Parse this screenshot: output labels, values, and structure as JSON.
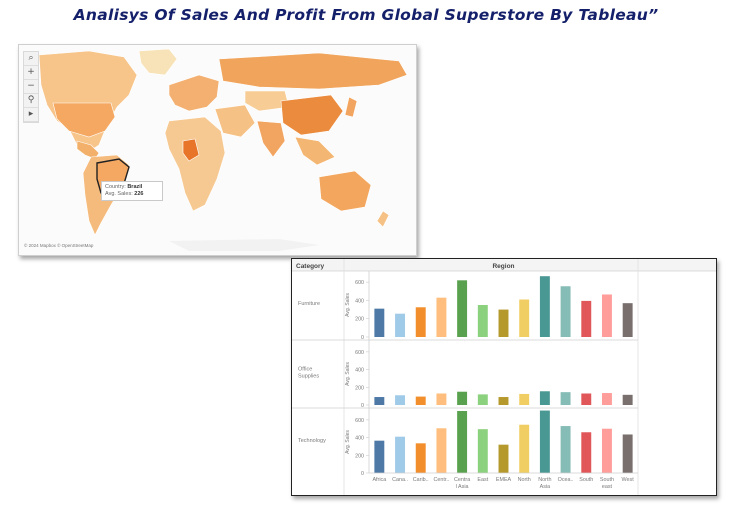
{
  "title": "Analisys Of Sales And Profit From Global Superstore By Tableau”",
  "map": {
    "tools": [
      "search-icon",
      "zoom-in-icon",
      "zoom-out-icon",
      "pin-icon",
      "play-icon"
    ],
    "tooltip": {
      "country_label": "Country:",
      "country_value": "Brazil",
      "sales_label": "Avg. Sales:",
      "sales_value": "226"
    },
    "attribution": "© 2024 Mapbox © OpenStreetMap"
  },
  "chart_data": {
    "type": "bar",
    "header_category": "Category",
    "header_region": "Region",
    "ylabel": "Avg. Sales",
    "categories": [
      "Africa",
      "Cana..",
      "Carib..",
      "Centr..",
      "Centra l Asia",
      "East",
      "EMEA",
      "North",
      "North Asia",
      "Ocea..",
      "South",
      "South east",
      "West"
    ],
    "category_lines": [
      [
        "Africa"
      ],
      [
        "Cana.."
      ],
      [
        "Carib.."
      ],
      [
        "Centr.."
      ],
      [
        "Centra",
        "l Asia"
      ],
      [
        "East"
      ],
      [
        "EMEA"
      ],
      [
        "North"
      ],
      [
        "North",
        "Asia"
      ],
      [
        "Ocea.."
      ],
      [
        "South"
      ],
      [
        "South",
        "east"
      ],
      [
        "West"
      ]
    ],
    "colors": [
      "#4e79a7",
      "#a0cbe8",
      "#f28e2b",
      "#ffbe7d",
      "#59a14f",
      "#8cd17d",
      "#b6992d",
      "#f1ce63",
      "#499894",
      "#86bcb6",
      "#e15759",
      "#ff9d9a",
      "#79706e"
    ],
    "ylim": [
      0,
      700
    ],
    "yticks": [
      0,
      200,
      400,
      600
    ],
    "series": [
      {
        "name": "Furniture",
        "label_lines": [
          "Furniture"
        ],
        "values": [
          310,
          255,
          325,
          430,
          620,
          350,
          300,
          410,
          665,
          555,
          395,
          465,
          370
        ]
      },
      {
        "name": "Office Supplies",
        "label_lines": [
          "Office",
          "Supplies"
        ],
        "values": [
          90,
          110,
          95,
          130,
          150,
          120,
          90,
          125,
          155,
          145,
          130,
          135,
          115
        ]
      },
      {
        "name": "Technology",
        "label_lines": [
          "Technology"
        ],
        "values": [
          365,
          410,
          335,
          505,
          700,
          495,
          320,
          545,
          705,
          530,
          460,
          500,
          435
        ]
      }
    ]
  }
}
